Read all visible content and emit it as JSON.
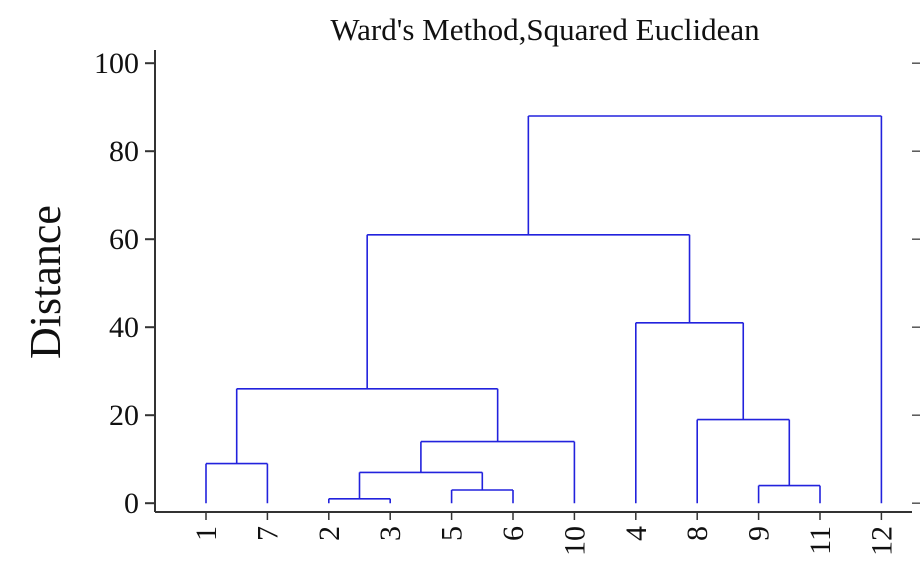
{
  "chart_data": {
    "type": "dendrogram",
    "title": "Ward's Method,Squared Euclidean",
    "ylabel": "Distance",
    "ylim": [
      -2,
      103
    ],
    "yticks": [
      0,
      20,
      40,
      60,
      80,
      100
    ],
    "color": "#2222dd",
    "tree": {
      "height": 88,
      "children": [
        {
          "height": 61,
          "children": [
            {
              "height": 26,
              "children": [
                {
                  "height": 9,
                  "children": [
                    {
                      "label": "1"
                    },
                    {
                      "label": "7"
                    }
                  ]
                },
                {
                  "height": 14,
                  "children": [
                    {
                      "height": 7,
                      "children": [
                        {
                          "height": 1,
                          "children": [
                            {
                              "label": "2"
                            },
                            {
                              "label": "3"
                            }
                          ]
                        },
                        {
                          "height": 3,
                          "children": [
                            {
                              "label": "5"
                            },
                            {
                              "label": "6"
                            }
                          ]
                        }
                      ]
                    },
                    {
                      "label": "10"
                    }
                  ]
                }
              ]
            },
            {
              "height": 41,
              "children": [
                {
                  "label": "4"
                },
                {
                  "height": 19,
                  "children": [
                    {
                      "label": "8"
                    },
                    {
                      "height": 4,
                      "children": [
                        {
                          "label": "9"
                        },
                        {
                          "label": "11"
                        }
                      ]
                    }
                  ]
                }
              ]
            }
          ]
        },
        {
          "label": "12"
        }
      ]
    }
  }
}
